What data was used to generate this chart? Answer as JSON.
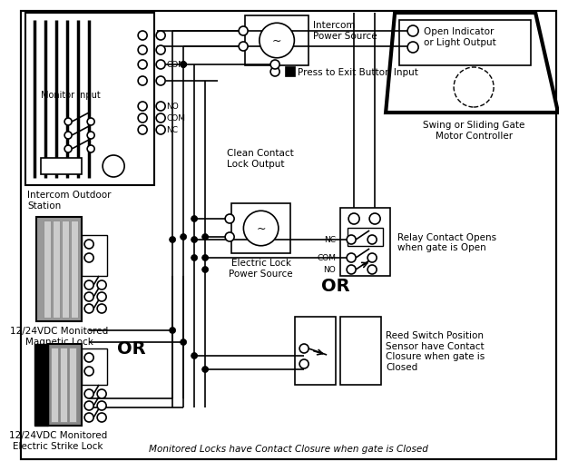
{
  "bg_color": "#ffffff",
  "lw": 1.2,
  "labels": {
    "intercom_power_source": "Intercom\nPower Source",
    "press_to_exit": "Press to Exit Button Input",
    "monitor_input": "Monitor Input",
    "clean_contact": "Clean Contact\nLock Output",
    "intercom_outdoor": "Intercom Outdoor\nStation",
    "electric_lock_ps": "Electric Lock\nPower Source",
    "magnetic_lock": "12/24VDC Monitored\nMagnetic Lock",
    "or1": "OR",
    "electric_strike": "12/24VDC Monitored\nElectric Strike Lock",
    "swing_gate": "Swing or Sliding Gate\nMotor Controller",
    "open_indicator": "Open Indicator\nor Light Output",
    "relay_contact": "Relay Contact Opens\nwhen gate is Open",
    "or2": "OR",
    "reed_switch": "Reed Switch Position\nSensor have Contact\nClosure when gate is\nClosed",
    "monitored_locks": "Monitored Locks have Contact Closure when gate is Closed"
  }
}
